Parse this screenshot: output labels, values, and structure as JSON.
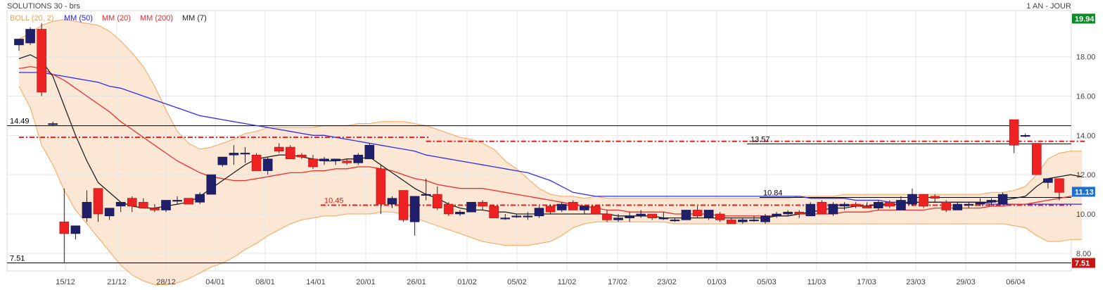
{
  "header": {
    "instrument": "SOLUTIONS 30 - brs",
    "period": "1 AN - JOUR"
  },
  "legend": [
    {
      "label": "BOLL (20, 2)",
      "color": "#f0a050"
    },
    {
      "label": "MM (50)",
      "color": "#2020e0"
    },
    {
      "label": "MM (20)",
      "color": "#e03030"
    },
    {
      "label": "MM (200)",
      "color": "#e03030"
    },
    {
      "label": "MM (7)",
      "color": "#222222"
    }
  ],
  "colors": {
    "up": "#20206a",
    "down": "#ee2222",
    "boll_fill": "#fbe7d3",
    "boll_line": "#f5a55a",
    "grid": "#e4e4e4"
  },
  "chart_data": {
    "type": "candlestick",
    "x_tick_labels": [
      "15/12",
      "21/12",
      "28/12",
      "04/01",
      "08/01",
      "14/01",
      "20/01",
      "26/01",
      "01/02",
      "05/02",
      "11/02",
      "17/02",
      "23/02",
      "01/03",
      "05/03",
      "11/03",
      "17/03",
      "23/03",
      "29/03",
      "06/04"
    ],
    "y_tick_labels": [
      "8.00",
      "10.00",
      "12.00",
      "14.00",
      "16.00",
      "18.00"
    ],
    "ylim": [
      7.1,
      20.35
    ],
    "candles": [
      {
        "o": 18.6,
        "h": 18.9,
        "l": 18.3,
        "c": 18.9
      },
      {
        "o": 18.7,
        "h": 19.5,
        "l": 18.6,
        "c": 19.4
      },
      {
        "o": 19.4,
        "h": 19.7,
        "l": 16.0,
        "c": 16.2
      },
      {
        "o": 14.6,
        "h": 14.7,
        "l": 14.5,
        "c": 14.6
      },
      {
        "o": 9.6,
        "h": 11.3,
        "l": 7.5,
        "c": 9.0
      },
      {
        "o": 9.0,
        "h": 9.4,
        "l": 8.7,
        "c": 9.4
      },
      {
        "o": 9.8,
        "h": 11.2,
        "l": 9.6,
        "c": 10.6
      },
      {
        "o": 11.3,
        "h": 11.3,
        "l": 9.6,
        "c": 10.0
      },
      {
        "o": 9.9,
        "h": 10.3,
        "l": 9.7,
        "c": 10.3
      },
      {
        "o": 10.4,
        "h": 10.6,
        "l": 10.1,
        "c": 10.6
      },
      {
        "o": 10.8,
        "h": 10.9,
        "l": 10.1,
        "c": 10.4
      },
      {
        "o": 10.6,
        "h": 10.8,
        "l": 10.3,
        "c": 10.3
      },
      {
        "o": 10.3,
        "h": 10.5,
        "l": 10.1,
        "c": 10.2
      },
      {
        "o": 10.2,
        "h": 10.7,
        "l": 10.1,
        "c": 10.7
      },
      {
        "o": 10.7,
        "h": 10.9,
        "l": 10.5,
        "c": 10.7
      },
      {
        "o": 10.8,
        "h": 10.8,
        "l": 10.5,
        "c": 10.5
      },
      {
        "o": 10.6,
        "h": 11.1,
        "l": 10.5,
        "c": 11.0
      },
      {
        "o": 11.0,
        "h": 12.0,
        "l": 11.0,
        "c": 12.0
      },
      {
        "o": 12.5,
        "h": 12.9,
        "l": 12.4,
        "c": 12.9
      },
      {
        "o": 13.0,
        "h": 13.5,
        "l": 12.5,
        "c": 13.1
      },
      {
        "o": 13.1,
        "h": 13.4,
        "l": 12.6,
        "c": 13.1
      },
      {
        "o": 13.0,
        "h": 13.1,
        "l": 12.2,
        "c": 12.2
      },
      {
        "o": 12.2,
        "h": 12.9,
        "l": 12.0,
        "c": 12.8
      },
      {
        "o": 13.4,
        "h": 13.6,
        "l": 13.1,
        "c": 13.2
      },
      {
        "o": 13.4,
        "h": 13.5,
        "l": 12.8,
        "c": 12.8
      },
      {
        "o": 13.0,
        "h": 13.1,
        "l": 12.8,
        "c": 12.9
      },
      {
        "o": 12.8,
        "h": 13.0,
        "l": 12.3,
        "c": 12.4
      },
      {
        "o": 12.7,
        "h": 12.9,
        "l": 12.5,
        "c": 12.8
      },
      {
        "o": 12.7,
        "h": 12.8,
        "l": 12.5,
        "c": 12.8
      },
      {
        "o": 12.7,
        "h": 12.8,
        "l": 12.5,
        "c": 12.6
      },
      {
        "o": 12.6,
        "h": 13.1,
        "l": 12.5,
        "c": 13.0
      },
      {
        "o": 12.8,
        "h": 13.6,
        "l": 12.8,
        "c": 13.5
      },
      {
        "o": 12.3,
        "h": 12.5,
        "l": 10.0,
        "c": 10.5
      },
      {
        "o": 10.5,
        "h": 10.9,
        "l": 10.3,
        "c": 10.8
      },
      {
        "o": 11.2,
        "h": 11.2,
        "l": 9.6,
        "c": 9.7
      },
      {
        "o": 9.6,
        "h": 10.9,
        "l": 8.9,
        "c": 10.9
      },
      {
        "o": 11.0,
        "h": 11.8,
        "l": 10.7,
        "c": 11.0
      },
      {
        "o": 11.0,
        "h": 11.4,
        "l": 10.2,
        "c": 10.3
      },
      {
        "o": 10.5,
        "h": 10.6,
        "l": 9.9,
        "c": 10.0
      },
      {
        "o": 10.0,
        "h": 10.2,
        "l": 9.9,
        "c": 10.1
      },
      {
        "o": 10.1,
        "h": 10.6,
        "l": 10.1,
        "c": 10.6
      },
      {
        "o": 10.6,
        "h": 10.7,
        "l": 10.2,
        "c": 10.4
      },
      {
        "o": 10.4,
        "h": 10.4,
        "l": 9.8,
        "c": 9.8
      },
      {
        "o": 9.8,
        "h": 10.0,
        "l": 9.7,
        "c": 9.8
      },
      {
        "o": 9.9,
        "h": 10.0,
        "l": 9.8,
        "c": 9.9
      },
      {
        "o": 9.9,
        "h": 10.1,
        "l": 9.7,
        "c": 9.9
      },
      {
        "o": 9.9,
        "h": 10.4,
        "l": 9.8,
        "c": 10.3
      },
      {
        "o": 10.4,
        "h": 10.5,
        "l": 10.0,
        "c": 10.1
      },
      {
        "o": 10.2,
        "h": 10.6,
        "l": 10.1,
        "c": 10.5
      },
      {
        "o": 10.6,
        "h": 10.7,
        "l": 10.2,
        "c": 10.2
      },
      {
        "o": 10.2,
        "h": 10.4,
        "l": 10.0,
        "c": 10.4
      },
      {
        "o": 10.4,
        "h": 10.4,
        "l": 10.0,
        "c": 10.0
      },
      {
        "o": 10.0,
        "h": 10.2,
        "l": 9.6,
        "c": 9.7
      },
      {
        "o": 9.7,
        "h": 10.0,
        "l": 9.6,
        "c": 9.8
      },
      {
        "o": 9.8,
        "h": 10.1,
        "l": 9.6,
        "c": 9.9
      },
      {
        "o": 9.9,
        "h": 10.2,
        "l": 9.8,
        "c": 10.0
      },
      {
        "o": 10.0,
        "h": 10.0,
        "l": 9.7,
        "c": 9.8
      },
      {
        "o": 9.8,
        "h": 10.1,
        "l": 9.7,
        "c": 9.8
      },
      {
        "o": 9.7,
        "h": 9.8,
        "l": 9.6,
        "c": 9.7
      },
      {
        "o": 9.7,
        "h": 10.2,
        "l": 9.7,
        "c": 10.2
      },
      {
        "o": 10.2,
        "h": 10.4,
        "l": 9.8,
        "c": 9.9
      },
      {
        "o": 9.8,
        "h": 10.2,
        "l": 9.7,
        "c": 10.2
      },
      {
        "o": 10.0,
        "h": 10.1,
        "l": 9.6,
        "c": 9.7
      },
      {
        "o": 9.7,
        "h": 9.8,
        "l": 9.5,
        "c": 9.5
      },
      {
        "o": 9.6,
        "h": 9.8,
        "l": 9.5,
        "c": 9.7
      },
      {
        "o": 9.7,
        "h": 9.9,
        "l": 9.6,
        "c": 9.7
      },
      {
        "o": 9.6,
        "h": 10.0,
        "l": 9.5,
        "c": 9.9
      },
      {
        "o": 9.9,
        "h": 10.1,
        "l": 9.8,
        "c": 10.0
      },
      {
        "o": 10.0,
        "h": 10.2,
        "l": 9.9,
        "c": 10.1
      },
      {
        "o": 10.1,
        "h": 10.2,
        "l": 9.8,
        "c": 10.0
      },
      {
        "o": 9.9,
        "h": 10.6,
        "l": 9.9,
        "c": 10.5
      },
      {
        "o": 10.6,
        "h": 10.7,
        "l": 10.0,
        "c": 10.0
      },
      {
        "o": 10.0,
        "h": 10.6,
        "l": 9.9,
        "c": 10.5
      },
      {
        "o": 10.4,
        "h": 10.6,
        "l": 10.2,
        "c": 10.5
      },
      {
        "o": 10.5,
        "h": 10.6,
        "l": 10.3,
        "c": 10.4
      },
      {
        "o": 10.4,
        "h": 10.6,
        "l": 10.3,
        "c": 10.3
      },
      {
        "o": 10.3,
        "h": 10.7,
        "l": 10.2,
        "c": 10.6
      },
      {
        "o": 10.6,
        "h": 10.7,
        "l": 10.3,
        "c": 10.4
      },
      {
        "o": 10.2,
        "h": 10.9,
        "l": 10.2,
        "c": 10.7
      },
      {
        "o": 10.5,
        "h": 11.3,
        "l": 10.4,
        "c": 11.0
      },
      {
        "o": 11.0,
        "h": 11.0,
        "l": 10.3,
        "c": 10.4
      },
      {
        "o": 10.9,
        "h": 11.0,
        "l": 10.6,
        "c": 10.8
      },
      {
        "o": 10.6,
        "h": 10.7,
        "l": 10.1,
        "c": 10.2
      },
      {
        "o": 10.2,
        "h": 10.6,
        "l": 10.2,
        "c": 10.5
      },
      {
        "o": 10.5,
        "h": 10.6,
        "l": 10.3,
        "c": 10.5
      },
      {
        "o": 10.5,
        "h": 10.8,
        "l": 10.4,
        "c": 10.6
      },
      {
        "o": 10.6,
        "h": 10.8,
        "l": 10.4,
        "c": 10.7
      },
      {
        "o": 10.5,
        "h": 11.1,
        "l": 10.5,
        "c": 11.0
      },
      {
        "o": 14.8,
        "h": 14.8,
        "l": 13.1,
        "c": 13.5
      },
      {
        "o": 14.0,
        "h": 14.1,
        "l": 13.9,
        "c": 14.0
      },
      {
        "o": 13.6,
        "h": 13.6,
        "l": 12.0,
        "c": 12.0
      },
      {
        "o": 11.6,
        "h": 11.8,
        "l": 11.3,
        "c": 11.8
      },
      {
        "o": 11.8,
        "h": 11.8,
        "l": 10.7,
        "c": 11.1
      }
    ],
    "bollinger_upper": [
      18.9,
      19.2,
      19.6,
      19.8,
      19.9,
      19.8,
      19.7,
      19.6,
      19.3,
      18.8,
      18.2,
      17.5,
      16.5,
      15.3,
      14.2,
      13.6,
      13.3,
      13.4,
      13.6,
      13.8,
      14.1,
      14.2,
      14.4,
      14.4,
      14.4,
      14.4,
      14.4,
      14.5,
      14.5,
      14.5,
      14.6,
      14.6,
      14.7,
      14.7,
      14.7,
      14.6,
      14.5,
      14.3,
      14.1,
      13.9,
      13.8,
      13.6,
      13.3,
      12.7,
      12.3,
      11.8,
      11.3,
      11.0,
      10.9,
      10.9,
      10.8,
      10.9,
      10.8,
      10.8,
      10.8,
      10.8,
      10.8,
      10.8,
      10.8,
      10.8,
      10.8,
      10.8,
      10.8,
      10.8,
      10.8,
      10.8,
      10.8,
      10.8,
      10.8,
      10.9,
      10.9,
      10.9,
      10.9,
      11.0,
      11.0,
      11.0,
      11.0,
      11.0,
      11.0,
      11.0,
      11.0,
      11.0,
      11.0,
      11.0,
      11.0,
      11.0,
      11.1,
      11.1,
      11.2,
      11.4,
      12.0,
      12.8,
      13.1,
      13.2,
      13.2
    ],
    "bollinger_lower": [
      16.5,
      15.4,
      13.5,
      12.5,
      11.2,
      10.2,
      9.5,
      8.8,
      8.1,
      7.4,
      6.9,
      6.6,
      6.4,
      6.4,
      6.5,
      6.7,
      7.0,
      7.3,
      7.5,
      7.8,
      8.2,
      8.5,
      8.9,
      9.2,
      9.5,
      9.7,
      9.8,
      9.9,
      9.9,
      10.0,
      10.0,
      10.0,
      10.1,
      10.1,
      10.0,
      9.8,
      9.6,
      9.4,
      9.2,
      9.0,
      8.8,
      8.6,
      8.5,
      8.4,
      8.4,
      8.4,
      8.5,
      8.6,
      8.9,
      9.3,
      9.5,
      9.6,
      9.6,
      9.6,
      9.6,
      9.6,
      9.6,
      9.6,
      9.5,
      9.5,
      9.5,
      9.5,
      9.5,
      9.5,
      9.5,
      9.5,
      9.5,
      9.5,
      9.5,
      9.5,
      9.5,
      9.5,
      9.5,
      9.5,
      9.5,
      9.5,
      9.5,
      9.5,
      9.5,
      9.5,
      9.5,
      9.5,
      9.5,
      9.5,
      9.5,
      9.5,
      9.5,
      9.5,
      9.4,
      9.3,
      8.9,
      8.6,
      8.6,
      8.7,
      8.7
    ],
    "mm7": [
      17.9,
      18.1,
      17.8,
      17.0,
      15.5,
      14.0,
      12.7,
      11.6,
      11.1,
      10.6,
      10.4,
      10.3,
      10.3,
      10.4,
      10.5,
      10.6,
      10.9,
      11.3,
      11.7,
      12.1,
      12.5,
      12.8,
      12.9,
      13.0,
      13.0,
      12.9,
      12.8,
      12.7,
      12.7,
      12.8,
      12.8,
      12.9,
      12.5,
      12.1,
      11.7,
      11.3,
      11.0,
      10.8,
      10.5,
      10.3,
      10.2,
      10.2,
      10.1,
      10.1,
      10.0,
      10.0,
      10.0,
      10.0,
      10.0,
      10.0,
      10.0,
      10.0,
      10.0,
      9.9,
      9.9,
      9.9,
      9.9,
      9.8,
      9.8,
      9.8,
      9.8,
      9.8,
      9.8,
      9.8,
      9.8,
      9.8,
      9.8,
      9.9,
      9.9,
      10.0,
      10.1,
      10.2,
      10.3,
      10.3,
      10.4,
      10.4,
      10.5,
      10.5,
      10.5,
      10.6,
      10.6,
      10.6,
      10.6,
      10.6,
      10.6,
      10.6,
      10.6,
      10.7,
      10.8,
      10.9,
      11.4,
      11.8,
      11.9,
      12.0,
      11.9
    ],
    "mm20": [
      17.4,
      17.5,
      17.4,
      17.1,
      16.8,
      16.4,
      16.0,
      15.6,
      15.2,
      14.7,
      14.3,
      13.9,
      13.5,
      13.1,
      12.7,
      12.4,
      12.1,
      11.9,
      11.8,
      11.7,
      11.7,
      11.8,
      11.9,
      12.0,
      12.1,
      12.1,
      12.2,
      12.2,
      12.3,
      12.3,
      12.4,
      12.4,
      12.3,
      12.2,
      12.0,
      11.8,
      11.7,
      11.5,
      11.4,
      11.3,
      11.3,
      11.3,
      11.2,
      11.1,
      11.0,
      10.9,
      10.8,
      10.7,
      10.6,
      10.5,
      10.4,
      10.3,
      10.2,
      10.2,
      10.1,
      10.1,
      10.1,
      10.1,
      10.0,
      10.0,
      10.0,
      10.0,
      9.9,
      9.9,
      9.9,
      9.9,
      9.9,
      9.9,
      9.9,
      10.0,
      10.0,
      10.0,
      10.0,
      10.1,
      10.1,
      10.1,
      10.2,
      10.2,
      10.2,
      10.2,
      10.2,
      10.3,
      10.3,
      10.3,
      10.3,
      10.3,
      10.4,
      10.4,
      10.5,
      10.5,
      10.6,
      10.7,
      10.8,
      10.9,
      10.9
    ],
    "mm50": [
      17.2,
      17.2,
      17.2,
      17.1,
      17.0,
      16.9,
      16.8,
      16.7,
      16.5,
      16.4,
      16.2,
      16.0,
      15.8,
      15.6,
      15.4,
      15.2,
      15.0,
      14.9,
      14.8,
      14.7,
      14.6,
      14.5,
      14.4,
      14.3,
      14.2,
      14.1,
      14.0,
      14.0,
      13.9,
      13.8,
      13.7,
      13.6,
      13.5,
      13.4,
      13.3,
      13.2,
      13.0,
      12.9,
      12.8,
      12.7,
      12.6,
      12.5,
      12.4,
      12.3,
      12.2,
      12.1,
      11.9,
      11.7,
      11.4,
      11.1,
      11.0,
      10.9,
      10.9,
      10.9,
      10.9,
      10.9,
      10.9,
      10.9,
      10.9,
      10.9,
      10.9,
      10.9,
      10.9,
      10.9,
      10.9,
      10.9,
      10.9,
      10.9,
      10.9,
      10.9,
      10.8,
      10.8,
      10.8,
      10.8,
      10.7,
      10.7,
      10.7,
      10.6,
      10.6,
      10.6,
      10.6,
      10.6,
      10.6,
      10.6,
      10.6,
      10.6,
      10.5,
      10.5,
      10.5,
      10.5,
      10.5,
      10.5,
      10.5,
      10.5,
      10.5
    ],
    "mm200_segments": [
      {
        "from": 0,
        "to": 36,
        "value": 13.9
      },
      {
        "from": 36,
        "to": 94,
        "value": 13.7
      }
    ],
    "horizontal_levels": [
      {
        "value": 14.49,
        "label": "14.49",
        "color": "#000000",
        "style": "solid",
        "label_side": "left"
      },
      {
        "value": 7.51,
        "label": "7.51",
        "color": "#000000",
        "style": "solid",
        "label_side": "left"
      },
      {
        "value": 13.57,
        "label": "13.57",
        "color": "#000000",
        "style": "solid",
        "label_side": "right-segment"
      },
      {
        "value": 10.84,
        "label": "10.84",
        "color": "#000000",
        "style": "solid",
        "label_side": "right-segment"
      },
      {
        "value": 10.45,
        "label": "10.45",
        "color": "#e02020",
        "style": "dashdot",
        "label_side": "right-segment"
      }
    ],
    "price_tags": [
      {
        "value": 19.94,
        "label": "19.94",
        "color": "#0d8a2a"
      },
      {
        "value": 11.13,
        "label": "11.13",
        "color": "#1f6fd1"
      },
      {
        "value": 7.51,
        "label": "7.51",
        "color": "#cc1111"
      }
    ]
  }
}
